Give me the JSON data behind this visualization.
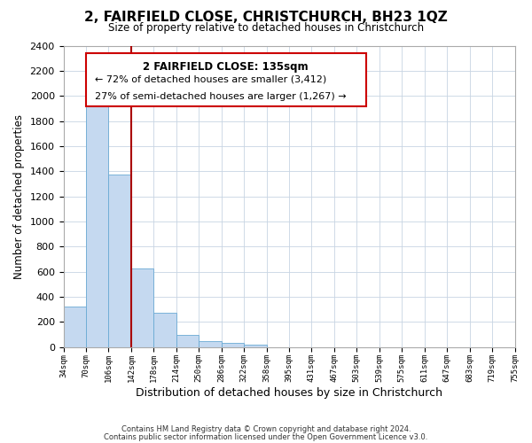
{
  "title": "2, FAIRFIELD CLOSE, CHRISTCHURCH, BH23 1QZ",
  "subtitle": "Size of property relative to detached houses in Christchurch",
  "xlabel": "Distribution of detached houses by size in Christchurch",
  "ylabel": "Number of detached properties",
  "bar_values": [
    320,
    1940,
    1375,
    625,
    275,
    95,
    45,
    30,
    20,
    0,
    0,
    0,
    0,
    0,
    0,
    0,
    0,
    0,
    0,
    0
  ],
  "bin_labels": [
    "34sqm",
    "70sqm",
    "106sqm",
    "142sqm",
    "178sqm",
    "214sqm",
    "250sqm",
    "286sqm",
    "322sqm",
    "358sqm",
    "395sqm",
    "431sqm",
    "467sqm",
    "503sqm",
    "539sqm",
    "575sqm",
    "611sqm",
    "647sqm",
    "683sqm",
    "719sqm",
    "755sqm"
  ],
  "bar_color": "#c5d9f0",
  "bar_edge_color": "#6aaad4",
  "vline_x": 3,
  "vline_color": "#aa0000",
  "ylim": [
    0,
    2400
  ],
  "yticks": [
    0,
    200,
    400,
    600,
    800,
    1000,
    1200,
    1400,
    1600,
    1800,
    2000,
    2200,
    2400
  ],
  "annotation_title": "2 FAIRFIELD CLOSE: 135sqm",
  "annotation_line1": "← 72% of detached houses are smaller (3,412)",
  "annotation_line2": "27% of semi-detached houses are larger (1,267) →",
  "footer_line1": "Contains HM Land Registry data © Crown copyright and database right 2024.",
  "footer_line2": "Contains public sector information licensed under the Open Government Licence v3.0.",
  "background_color": "#ffffff",
  "grid_color": "#c8d4e3"
}
